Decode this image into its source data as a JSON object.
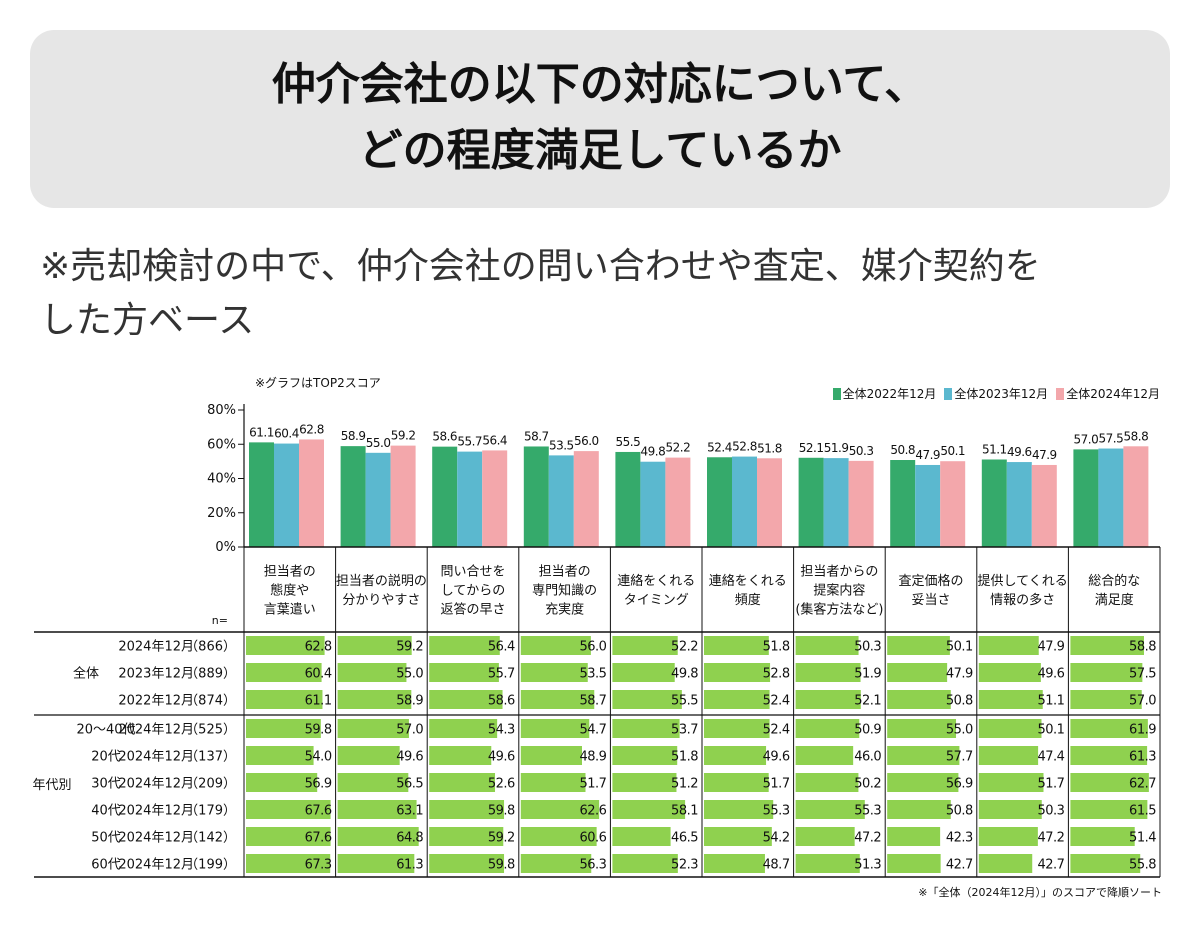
{
  "title": "仲介会社の以下の対応について、\nどの程度満足しているか",
  "note": "※売却検討の中で、仲介会社の問い合わせや査定、媒介契約を\nした方ベース",
  "chart_note": "※グラフはTOP2スコア",
  "footer_note": "※「全体（2024年12月）」のスコアで降順ソート",
  "colors": {
    "2022": "#35aa6b",
    "2023": "#5bb8cf",
    "2024": "#f3a7ab",
    "table_bar": "#8fd14f"
  },
  "chart_data": {
    "type": "bar",
    "ylim": [
      0,
      80
    ],
    "yticks": [
      "0%",
      "20%",
      "40%",
      "60%",
      "80%"
    ],
    "categories": [
      "担当者の\n態度や\n言葉遣い",
      "担当者の説明の\n分かりやすさ",
      "問い合せを\nしてからの\n返答の早さ",
      "担当者の\n専門知識の\n充実度",
      "連絡をくれる\nタイミング",
      "連絡をくれる\n頻度",
      "担当者からの\n提案内容\n(集客方法など)",
      "査定価格の\n妥当さ",
      "提供してくれる\n情報の多さ",
      "総合的な\n満足度"
    ],
    "series": [
      {
        "name": "全体2022年12月",
        "values": [
          61.1,
          58.9,
          58.6,
          58.7,
          55.5,
          52.4,
          52.1,
          50.8,
          51.1,
          57.0
        ],
        "labels": [
          "61.1",
          "58.9",
          "58.6",
          "58.7",
          "55.5",
          "52.4",
          "52.1",
          "50.8",
          "51.1",
          "57.0"
        ]
      },
      {
        "name": "全体2023年12月",
        "values": [
          60.4,
          55.0,
          55.7,
          53.5,
          49.8,
          52.8,
          51.9,
          47.9,
          49.6,
          57.5
        ],
        "labels": [
          "60.4",
          "55.0",
          "55.7",
          "53.5",
          "49.8",
          "52.8",
          "51.9",
          "47.9",
          "49.6",
          "57.5"
        ]
      },
      {
        "name": "全体2024年12月",
        "values": [
          62.8,
          59.2,
          56.4,
          56.0,
          52.2,
          51.8,
          50.3,
          50.1,
          47.9,
          58.8
        ],
        "labels": [
          "62.8",
          "59.2",
          "56.4",
          "56.0",
          "52.2",
          "51.8",
          "50.3",
          "50.1",
          "47.9",
          "58.8"
        ]
      }
    ],
    "table": {
      "n_label": "n=",
      "rows": [
        {
          "group": "全体",
          "sub": "",
          "period": "2024年12月",
          "n": "（866）",
          "values": [
            62.8,
            59.2,
            56.4,
            56.0,
            52.2,
            51.8,
            50.3,
            50.1,
            47.9,
            58.8
          ],
          "labels": [
            "62.8",
            "59.2",
            "56.4",
            "56.0",
            "52.2",
            "51.8",
            "50.3",
            "50.1",
            "47.9",
            "58.8"
          ]
        },
        {
          "group": "",
          "sub": "",
          "period": "2023年12月",
          "n": "（889）",
          "values": [
            60.4,
            55.0,
            55.7,
            53.5,
            49.8,
            52.8,
            51.9,
            47.9,
            49.6,
            57.5
          ],
          "labels": [
            "60.4",
            "55.0",
            "55.7",
            "53.5",
            "49.8",
            "52.8",
            "51.9",
            "47.9",
            "49.6",
            "57.5"
          ]
        },
        {
          "group": "",
          "sub": "",
          "period": "2022年12月",
          "n": "（874）",
          "values": [
            61.1,
            58.9,
            58.6,
            58.7,
            55.5,
            52.4,
            52.1,
            50.8,
            51.1,
            57.0
          ],
          "labels": [
            "61.1",
            "58.9",
            "58.6",
            "58.7",
            "55.5",
            "52.4",
            "52.1",
            "50.8",
            "51.1",
            "57.0"
          ]
        },
        {
          "group": "",
          "sub": "20～40代",
          "period": "2024年12月",
          "n": "（525）",
          "values": [
            59.8,
            57.0,
            54.3,
            54.7,
            53.7,
            52.4,
            50.9,
            55.0,
            50.1,
            61.9
          ],
          "labels": [
            "59.8",
            "57.0",
            "54.3",
            "54.7",
            "53.7",
            "52.4",
            "50.9",
            "55.0",
            "50.1",
            "61.9"
          ]
        },
        {
          "group": "",
          "sub": "20代",
          "period": "2024年12月",
          "n": "（137）",
          "values": [
            54.0,
            49.6,
            49.6,
            48.9,
            51.8,
            49.6,
            46.0,
            57.7,
            47.4,
            61.3
          ],
          "labels": [
            "54.0",
            "49.6",
            "49.6",
            "48.9",
            "51.8",
            "49.6",
            "46.0",
            "57.7",
            "47.4",
            "61.3"
          ]
        },
        {
          "group": "年代別",
          "sub": "30代",
          "period": "2024年12月",
          "n": "（209）",
          "values": [
            56.9,
            56.5,
            52.6,
            51.7,
            51.2,
            51.7,
            50.2,
            56.9,
            51.7,
            62.7
          ],
          "labels": [
            "56.9",
            "56.5",
            "52.6",
            "51.7",
            "51.2",
            "51.7",
            "50.2",
            "56.9",
            "51.7",
            "62.7"
          ]
        },
        {
          "group": "",
          "sub": "40代",
          "period": "2024年12月",
          "n": "（179）",
          "values": [
            67.6,
            63.1,
            59.8,
            62.6,
            58.1,
            55.3,
            55.3,
            50.8,
            50.3,
            61.5
          ],
          "labels": [
            "67.6",
            "63.1",
            "59.8",
            "62.6",
            "58.1",
            "55.3",
            "55.3",
            "50.8",
            "50.3",
            "61.5"
          ]
        },
        {
          "group": "",
          "sub": "50代",
          "period": "2024年12月",
          "n": "（142）",
          "values": [
            67.6,
            64.8,
            59.2,
            60.6,
            46.5,
            54.2,
            47.2,
            42.3,
            47.2,
            51.4
          ],
          "labels": [
            "67.6",
            "64.8",
            "59.2",
            "60.6",
            "46.5",
            "54.2",
            "47.2",
            "42.3",
            "47.2",
            "51.4"
          ]
        },
        {
          "group": "",
          "sub": "60代",
          "period": "2024年12月",
          "n": "（199）",
          "values": [
            67.3,
            61.3,
            59.8,
            56.3,
            52.3,
            48.7,
            51.3,
            42.7,
            42.7,
            55.8
          ],
          "labels": [
            "67.3",
            "61.3",
            "59.8",
            "56.3",
            "52.3",
            "48.7",
            "51.3",
            "42.7",
            "42.7",
            "55.8"
          ]
        }
      ]
    }
  }
}
